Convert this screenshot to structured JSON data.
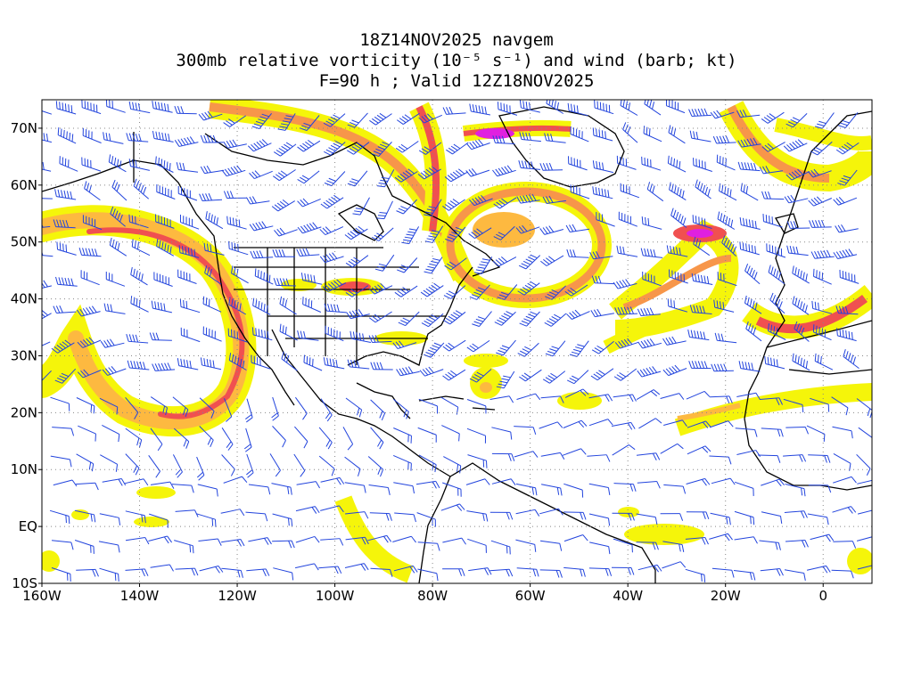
{
  "title": {
    "line1": "18Z14NOV2025 navgem",
    "line2": "300mb relative vorticity (10⁻⁵ s⁻¹) and wind (barb; kt)",
    "line3": "F=90 h ; Valid 12Z18NOV2025"
  },
  "map": {
    "projection": "lat-lon",
    "lon_range": [
      -160,
      10
    ],
    "lat_range": [
      -10,
      75
    ],
    "grid": "dotted",
    "lat_ticks": [
      {
        "value": 70,
        "label": "70N"
      },
      {
        "value": 60,
        "label": "60N"
      },
      {
        "value": 50,
        "label": "50N"
      },
      {
        "value": 40,
        "label": "40N"
      },
      {
        "value": 30,
        "label": "30N"
      },
      {
        "value": 20,
        "label": "20N"
      },
      {
        "value": 10,
        "label": "10N"
      },
      {
        "value": 0,
        "label": "EQ"
      },
      {
        "value": -10,
        "label": "10S"
      }
    ],
    "lon_ticks": [
      {
        "value": -160,
        "label": "160W"
      },
      {
        "value": -140,
        "label": "140W"
      },
      {
        "value": -120,
        "label": "120W"
      },
      {
        "value": -100,
        "label": "100W"
      },
      {
        "value": -80,
        "label": "80W"
      },
      {
        "value": -60,
        "label": "60W"
      },
      {
        "value": -40,
        "label": "40W"
      },
      {
        "value": -20,
        "label": "20W"
      },
      {
        "value": 0,
        "label": "0"
      }
    ],
    "colors": {
      "vort_low": "#f5f50a",
      "vort_mid1": "#ffdd22",
      "vort_mid2": "#fdb940",
      "vort_mid3": "#f7964a",
      "vort_high": "#f05050",
      "vort_max": "#e020e0",
      "barb": "#2244dd",
      "coast": "#000000",
      "grid": "#888888"
    }
  }
}
